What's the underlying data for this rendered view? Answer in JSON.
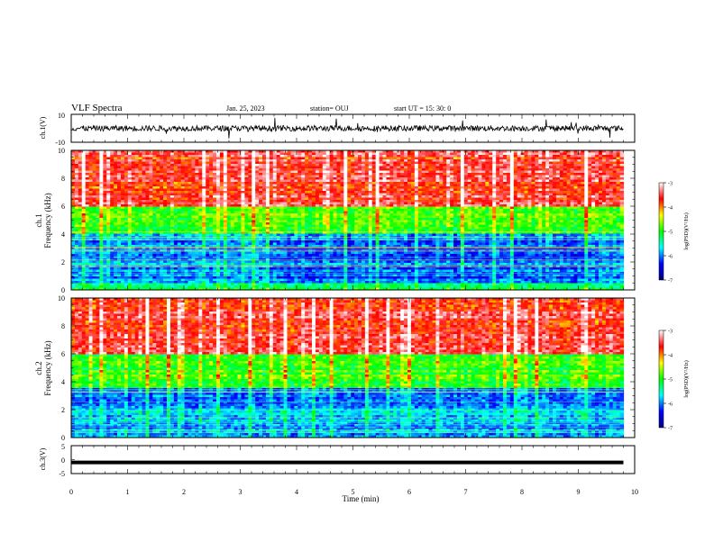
{
  "header": {
    "title": "VLF Spectra",
    "date": "Jan. 25, 2023",
    "station": "station= OUJ",
    "start": "start  UT  =   15: 30: 0"
  },
  "chart_data": [
    {
      "type": "line",
      "name": "ch1-waveform",
      "ylabel": "ch.1(V)",
      "ylim": [
        -10,
        10
      ],
      "yticks": [
        "10",
        "-10"
      ],
      "xlim": [
        0,
        10
      ],
      "trace_mean": 0,
      "trace_color": "#000000",
      "line_end_min": 9.8
    },
    {
      "type": "heatmap",
      "name": "ch1-spectrogram",
      "ylabel_top": "ch.1",
      "ylabel": "Frequency (kHz)",
      "ylim": [
        0,
        10
      ],
      "yticks": [
        "0",
        "2",
        "4",
        "6",
        "8",
        "10"
      ],
      "xlim": [
        0,
        10
      ],
      "data_end_min": 9.8,
      "colorbar": {
        "label": "log(PSD)(V²/Hz)",
        "range": [
          -7,
          -3
        ],
        "ticks": [
          "-3",
          "-4",
          "-5",
          "-6",
          "-7"
        ],
        "colors": [
          "#00007f",
          "#0000ff",
          "#00ffff",
          "#00ff00",
          "#ffff00",
          "#ff0000",
          "#ffffff"
        ]
      },
      "bands_khz": [
        {
          "from": 0,
          "to": 0.5,
          "level": "low-mid"
        },
        {
          "from": 0.5,
          "to": 4.0,
          "level": "low"
        },
        {
          "from": 4.0,
          "to": 6.0,
          "level": "mid"
        },
        {
          "from": 6.0,
          "to": 10.0,
          "level": "high"
        }
      ]
    },
    {
      "type": "heatmap",
      "name": "ch2-spectrogram",
      "ylabel_top": "ch.2",
      "ylabel": "Frequency (kHz)",
      "ylim": [
        0,
        10
      ],
      "yticks": [
        "0",
        "2",
        "4",
        "6",
        "8",
        "10"
      ],
      "xlim": [
        0,
        10
      ],
      "data_end_min": 9.8,
      "colorbar": {
        "label": "log(PSD)(V²/Hz)",
        "range": [
          -7,
          -3
        ],
        "ticks": [
          "-3",
          "-4",
          "-5",
          "-6",
          "-7"
        ],
        "colors": [
          "#00007f",
          "#0000ff",
          "#00ffff",
          "#00ff00",
          "#ffff00",
          "#ff0000",
          "#ffffff"
        ]
      },
      "bands_khz": [
        {
          "from": 0,
          "to": 3.5,
          "level": "low"
        },
        {
          "from": 3.5,
          "to": 6.0,
          "level": "mid"
        },
        {
          "from": 6.0,
          "to": 10.0,
          "level": "high"
        }
      ]
    },
    {
      "type": "line",
      "name": "ch3-waveform",
      "ylabel": "ch.3(V)",
      "ylim": [
        -5,
        5
      ],
      "yticks": [
        "5",
        "0",
        "-5"
      ],
      "xlim": [
        0,
        10
      ],
      "constant_value": -1,
      "trace_color": "#000000",
      "line_end_min": 9.8
    }
  ],
  "x_axis": {
    "label": "Time (min)",
    "ticks": [
      "0",
      "1",
      "2",
      "3",
      "4",
      "5",
      "6",
      "7",
      "8",
      "9",
      "10"
    ]
  }
}
